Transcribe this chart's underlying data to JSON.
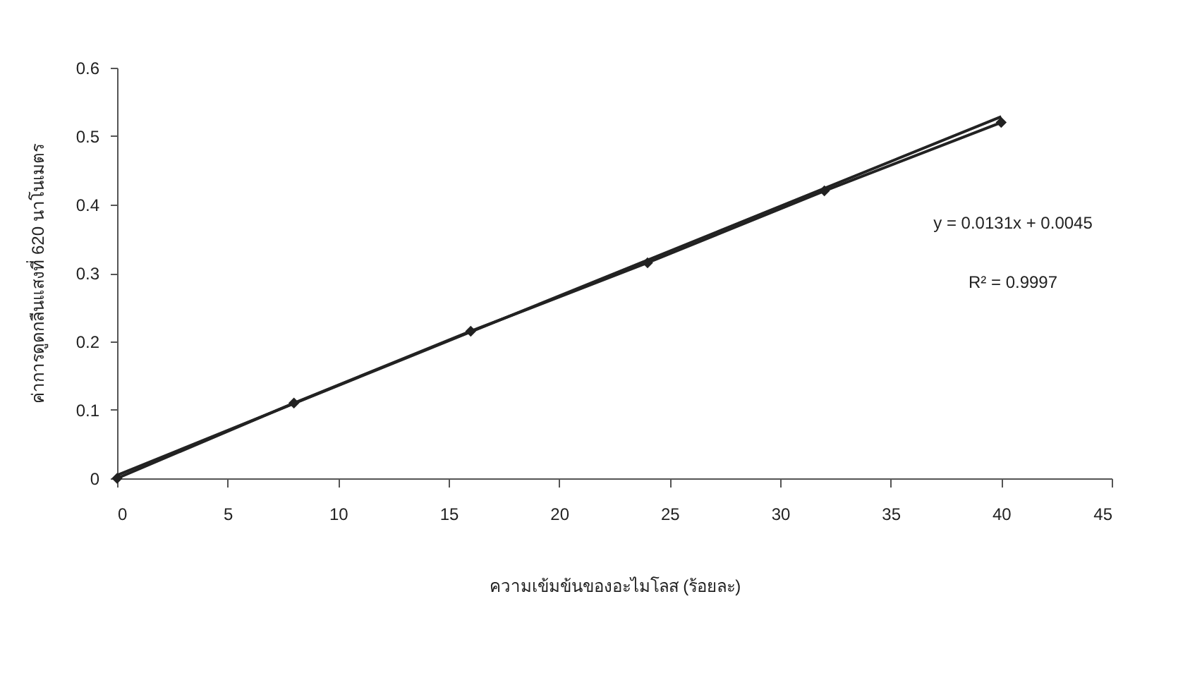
{
  "chart_data": {
    "type": "line",
    "xlabel": "ความเข้มข้นของอะไมโลส (ร้อยละ)",
    "ylabel": "ค่าการดูดกลืนแสงที่ 620 นาโนเมตร",
    "x": [
      0,
      8,
      16,
      24,
      32,
      40
    ],
    "series": [
      {
        "color": "#222222",
        "marker": "diamond",
        "values": [
          0,
          0.11,
          0.215,
          0.315,
          0.42,
          0.52
        ]
      },
      {
        "color": "#222222",
        "marker": "none",
        "x": [
          0,
          40
        ],
        "values": [
          0.0045,
          0.5285
        ]
      }
    ],
    "xlim": [
      0,
      45
    ],
    "xticks": [
      0,
      5,
      10,
      15,
      20,
      25,
      30,
      35,
      40,
      45
    ],
    "ylim": [
      0,
      0.6
    ],
    "yticks": [
      0,
      0.1,
      0.2,
      0.3,
      0.4,
      0.5,
      0.6
    ],
    "grid": false,
    "annotations": [
      "y = 0.0131x + 0.0045",
      "R² = 0.9997"
    ]
  }
}
